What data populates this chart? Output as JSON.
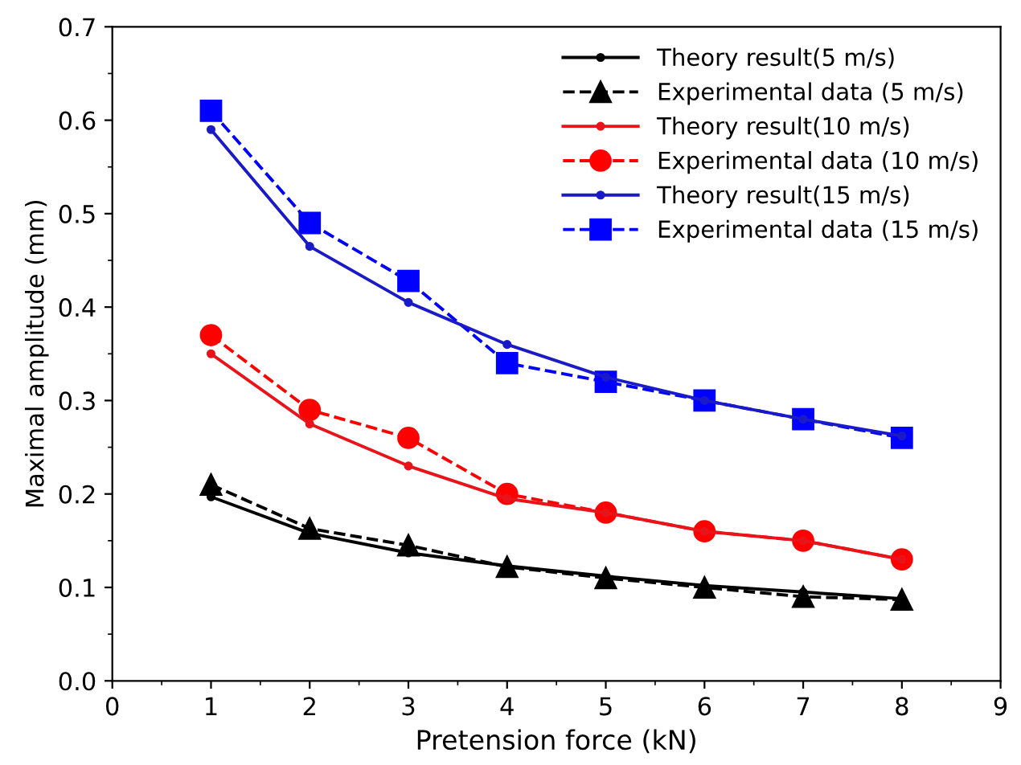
{
  "chart_data": {
    "type": "line",
    "xlabel": "Pretension force (kN)",
    "ylabel": "Maximal amplitude (mm)",
    "x": [
      1,
      2,
      3,
      4,
      5,
      6,
      7,
      8
    ],
    "series": [
      {
        "name": "Theory result(5 m/s)",
        "color": "#000000",
        "marker": "circle",
        "line_style": "solid",
        "values": [
          0.197,
          0.158,
          0.137,
          0.123,
          0.112,
          0.102,
          0.095,
          0.088
        ]
      },
      {
        "name": "Experimental data (5 m/s)",
        "color": "#000000",
        "marker": "triangle",
        "line_style": "dashed",
        "values": [
          0.21,
          0.163,
          0.145,
          0.122,
          0.11,
          0.1,
          0.09,
          0.087
        ]
      },
      {
        "name": "Theory result(10 m/s)",
        "color": "#e8141a",
        "marker": "circle",
        "line_style": "solid",
        "values": [
          0.35,
          0.275,
          0.23,
          0.195,
          0.18,
          0.16,
          0.15,
          0.13
        ]
      },
      {
        "name": "Experimental data (10 m/s)",
        "color": "#ff0000",
        "marker": "circle",
        "line_style": "dashed",
        "values": [
          0.37,
          0.29,
          0.26,
          0.2,
          0.18,
          0.16,
          0.15,
          0.13
        ]
      },
      {
        "name": "Theory result(15 m/s)",
        "color": "#1a1ac8",
        "marker": "circle",
        "line_style": "solid",
        "values": [
          0.59,
          0.465,
          0.405,
          0.36,
          0.325,
          0.3,
          0.28,
          0.262
        ]
      },
      {
        "name": "Experimental data (15 m/s)",
        "color": "#0000ff",
        "marker": "square",
        "line_style": "dashed",
        "values": [
          0.61,
          0.49,
          0.428,
          0.34,
          0.32,
          0.3,
          0.28,
          0.26
        ]
      }
    ],
    "xlim": [
      0,
      9
    ],
    "xticks": [
      0,
      1,
      2,
      3,
      4,
      5,
      6,
      7,
      8,
      9
    ],
    "ylim": [
      0,
      0.7
    ],
    "yticks": [
      {
        "value": 0,
        "label": "0.0"
      },
      0.1,
      0.2,
      0.3,
      0.4,
      0.5,
      0.6,
      0.7
    ],
    "grid": false,
    "legend": "top right"
  }
}
